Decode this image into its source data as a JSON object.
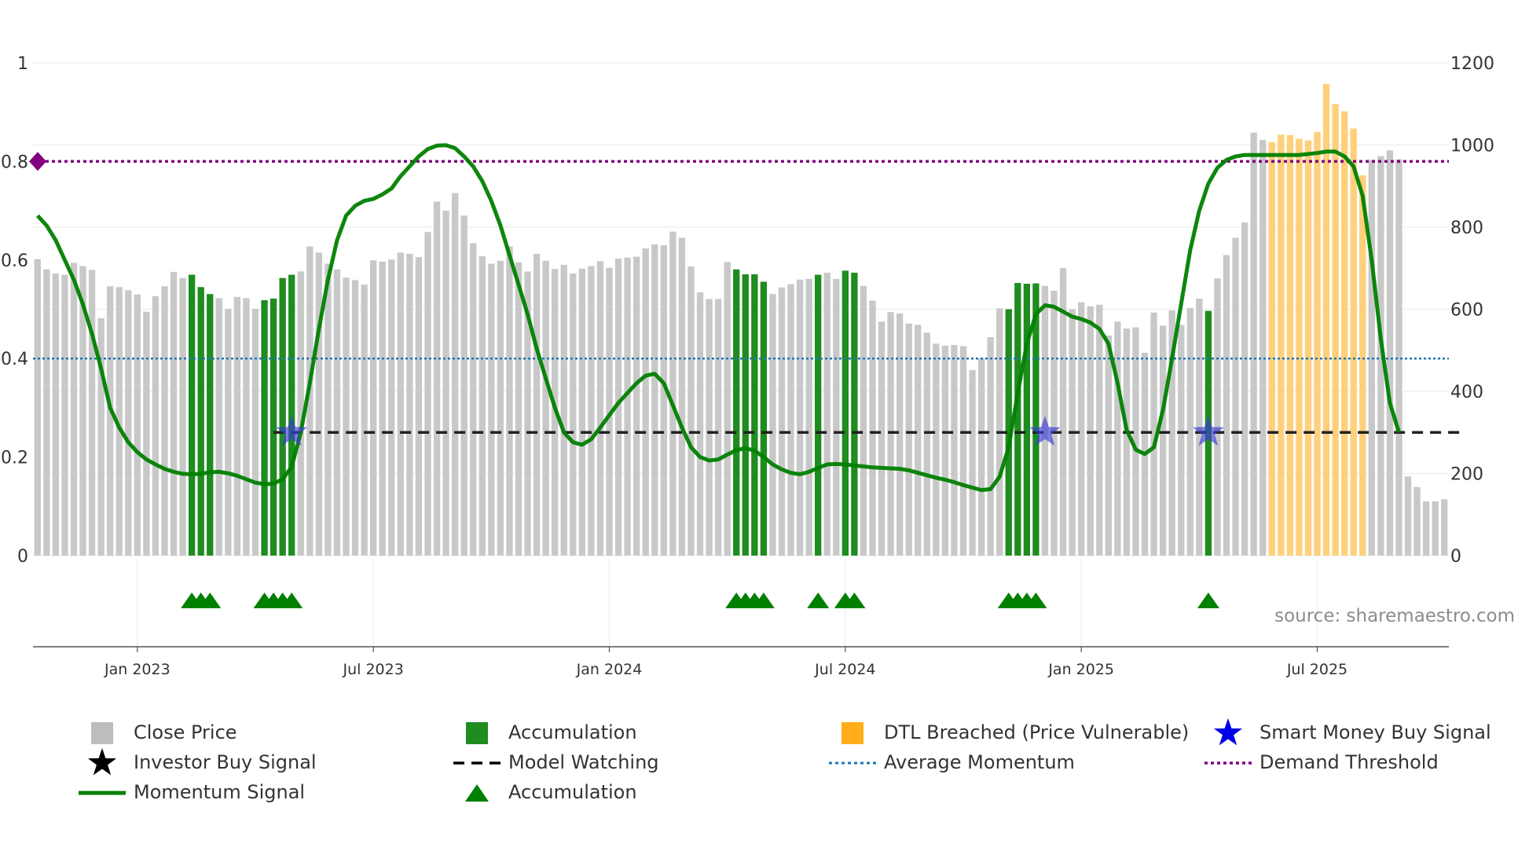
{
  "chart_data": {
    "type": "bar",
    "title": "",
    "source": "source: sharemaestro.com",
    "left_axis": {
      "ticks": [
        "0",
        "0.2",
        "0.4",
        "0.6",
        "0.8",
        "1"
      ],
      "values": [
        0,
        0.2,
        0.4,
        0.6,
        0.8,
        1
      ],
      "ylim": [
        0,
        1
      ]
    },
    "right_axis": {
      "ticks": [
        "0",
        "200",
        "400",
        "600",
        "800",
        "1000",
        "1200"
      ],
      "values": [
        0,
        200,
        400,
        600,
        800,
        1000,
        1200
      ],
      "ylim": [
        0,
        1200
      ]
    },
    "x_ticks": [
      {
        "label": "Jan 2023",
        "week": 11
      },
      {
        "label": "Jul 2023",
        "week": 37
      },
      {
        "label": "Jan 2024",
        "week": 63
      },
      {
        "label": "Jul 2024",
        "week": 89
      },
      {
        "label": "Jan 2025",
        "week": 115
      },
      {
        "label": "Jul 2025",
        "week": 141
      }
    ],
    "close_price": [
      722,
      697,
      687,
      684,
      713,
      705,
      696,
      578,
      656,
      654,
      646,
      636,
      594,
      632,
      656,
      691,
      676,
      684,
      654,
      637,
      627,
      601,
      630,
      627,
      601,
      622,
      626,
      676,
      684,
      692,
      753,
      738,
      711,
      697,
      677,
      671,
      660,
      719,
      716,
      721,
      738,
      735,
      727,
      788,
      862,
      840,
      883,
      828,
      761,
      729,
      711,
      718,
      753,
      714,
      692,
      735,
      718,
      698,
      708,
      687,
      699,
      705,
      717,
      701,
      723,
      726,
      728,
      748,
      758,
      756,
      789,
      774,
      704,
      641,
      625,
      625,
      715,
      697,
      685,
      685,
      667,
      637,
      653,
      661,
      672,
      674,
      684,
      689,
      674,
      694,
      689,
      657,
      621,
      570,
      593,
      590,
      565,
      562,
      543,
      516,
      511,
      513,
      510,
      452,
      480,
      532,
      602,
      600,
      664,
      662,
      663,
      657,
      645,
      700,
      600,
      617,
      607,
      611,
      536,
      570,
      553,
      556,
      494,
      592,
      560,
      597,
      562,
      603,
      626,
      596,
      675,
      732,
      774,
      811,
      1030,
      1012,
      1007,
      1025,
      1024,
      1015,
      1011,
      1032,
      1149,
      1100,
      1082,
      1040,
      926,
      964,
      973,
      987,
      965,
      193,
      167,
      132,
      132,
      137
    ],
    "accumulation_weeks": [
      17,
      18,
      19,
      25,
      26,
      27,
      28,
      77,
      78,
      79,
      80,
      86,
      89,
      90,
      107,
      108,
      109,
      110,
      129
    ],
    "dtl_breached_weeks": [
      136,
      137,
      138,
      139,
      140,
      141,
      142,
      143,
      144,
      145,
      146
    ],
    "momentum_signal": [
      0.69,
      0.67,
      0.64,
      0.6,
      0.56,
      0.51,
      0.45,
      0.38,
      0.3,
      0.26,
      0.23,
      0.21,
      0.195,
      0.185,
      0.176,
      0.17,
      0.166,
      0.165,
      0.166,
      0.169,
      0.17,
      0.167,
      0.162,
      0.155,
      0.148,
      0.145,
      0.146,
      0.155,
      0.18,
      0.25,
      0.35,
      0.46,
      0.56,
      0.64,
      0.69,
      0.71,
      0.72,
      0.724,
      0.733,
      0.745,
      0.77,
      0.79,
      0.81,
      0.825,
      0.832,
      0.833,
      0.827,
      0.81,
      0.79,
      0.76,
      0.72,
      0.67,
      0.61,
      0.55,
      0.49,
      0.42,
      0.36,
      0.3,
      0.25,
      0.23,
      0.225,
      0.236,
      0.26,
      0.285,
      0.31,
      0.33,
      0.35,
      0.365,
      0.369,
      0.35,
      0.305,
      0.26,
      0.22,
      0.2,
      0.193,
      0.195,
      0.205,
      0.214,
      0.218,
      0.213,
      0.2,
      0.185,
      0.175,
      0.168,
      0.165,
      0.17,
      0.178,
      0.185,
      0.186,
      0.185,
      0.183,
      0.181,
      0.179,
      0.178,
      0.177,
      0.176,
      0.173,
      0.168,
      0.163,
      0.158,
      0.154,
      0.149,
      0.143,
      0.138,
      0.133,
      0.135,
      0.16,
      0.22,
      0.33,
      0.43,
      0.49,
      0.508,
      0.505,
      0.495,
      0.485,
      0.48,
      0.473,
      0.46,
      0.43,
      0.35,
      0.255,
      0.215,
      0.206,
      0.22,
      0.295,
      0.4,
      0.51,
      0.62,
      0.7,
      0.755,
      0.787,
      0.803,
      0.81,
      0.813,
      0.813,
      0.813,
      0.813,
      0.813,
      0.813,
      0.813,
      0.815,
      0.817,
      0.82,
      0.82,
      0.81,
      0.79,
      0.73,
      0.6,
      0.44,
      0.31,
      0.25
    ],
    "model_watching": {
      "value": 0.25,
      "start_week": 26,
      "end_week": 157
    },
    "smart_money_buy_signal_weeks": [
      28,
      111,
      129
    ],
    "accumulation_markers": [
      17,
      18,
      19,
      25,
      26,
      27,
      28,
      77,
      78,
      79,
      80,
      86,
      89,
      90,
      107,
      108,
      109,
      110,
      129
    ],
    "average_momentum": 0.4,
    "demand_threshold": 0.8,
    "legend": [
      {
        "key": "close",
        "label": "Close Price",
        "color": "#bdbdbd"
      },
      {
        "key": "accum",
        "label": "Accumulation",
        "color": "#1e8c1e"
      },
      {
        "key": "dtl",
        "label": "DTL Breached (Price Vulnerable)",
        "color": "#ffae1a"
      },
      {
        "key": "smart",
        "label": "Smart Money Buy Signal",
        "color": "#0000e6"
      },
      {
        "key": "investor",
        "label": "Investor Buy Signal",
        "color": "#000000"
      },
      {
        "key": "watch",
        "label": "Model Watching",
        "color": "#000000"
      },
      {
        "key": "avg",
        "label": "Average Momentum",
        "color": "#1f77b4"
      },
      {
        "key": "demand",
        "label": "Demand Threshold",
        "color": "#800080"
      },
      {
        "key": "momentum",
        "label": "Momentum Signal",
        "color": "#008000"
      },
      {
        "key": "accum_marker",
        "label": "Accumulation",
        "color": "#008000"
      }
    ]
  }
}
